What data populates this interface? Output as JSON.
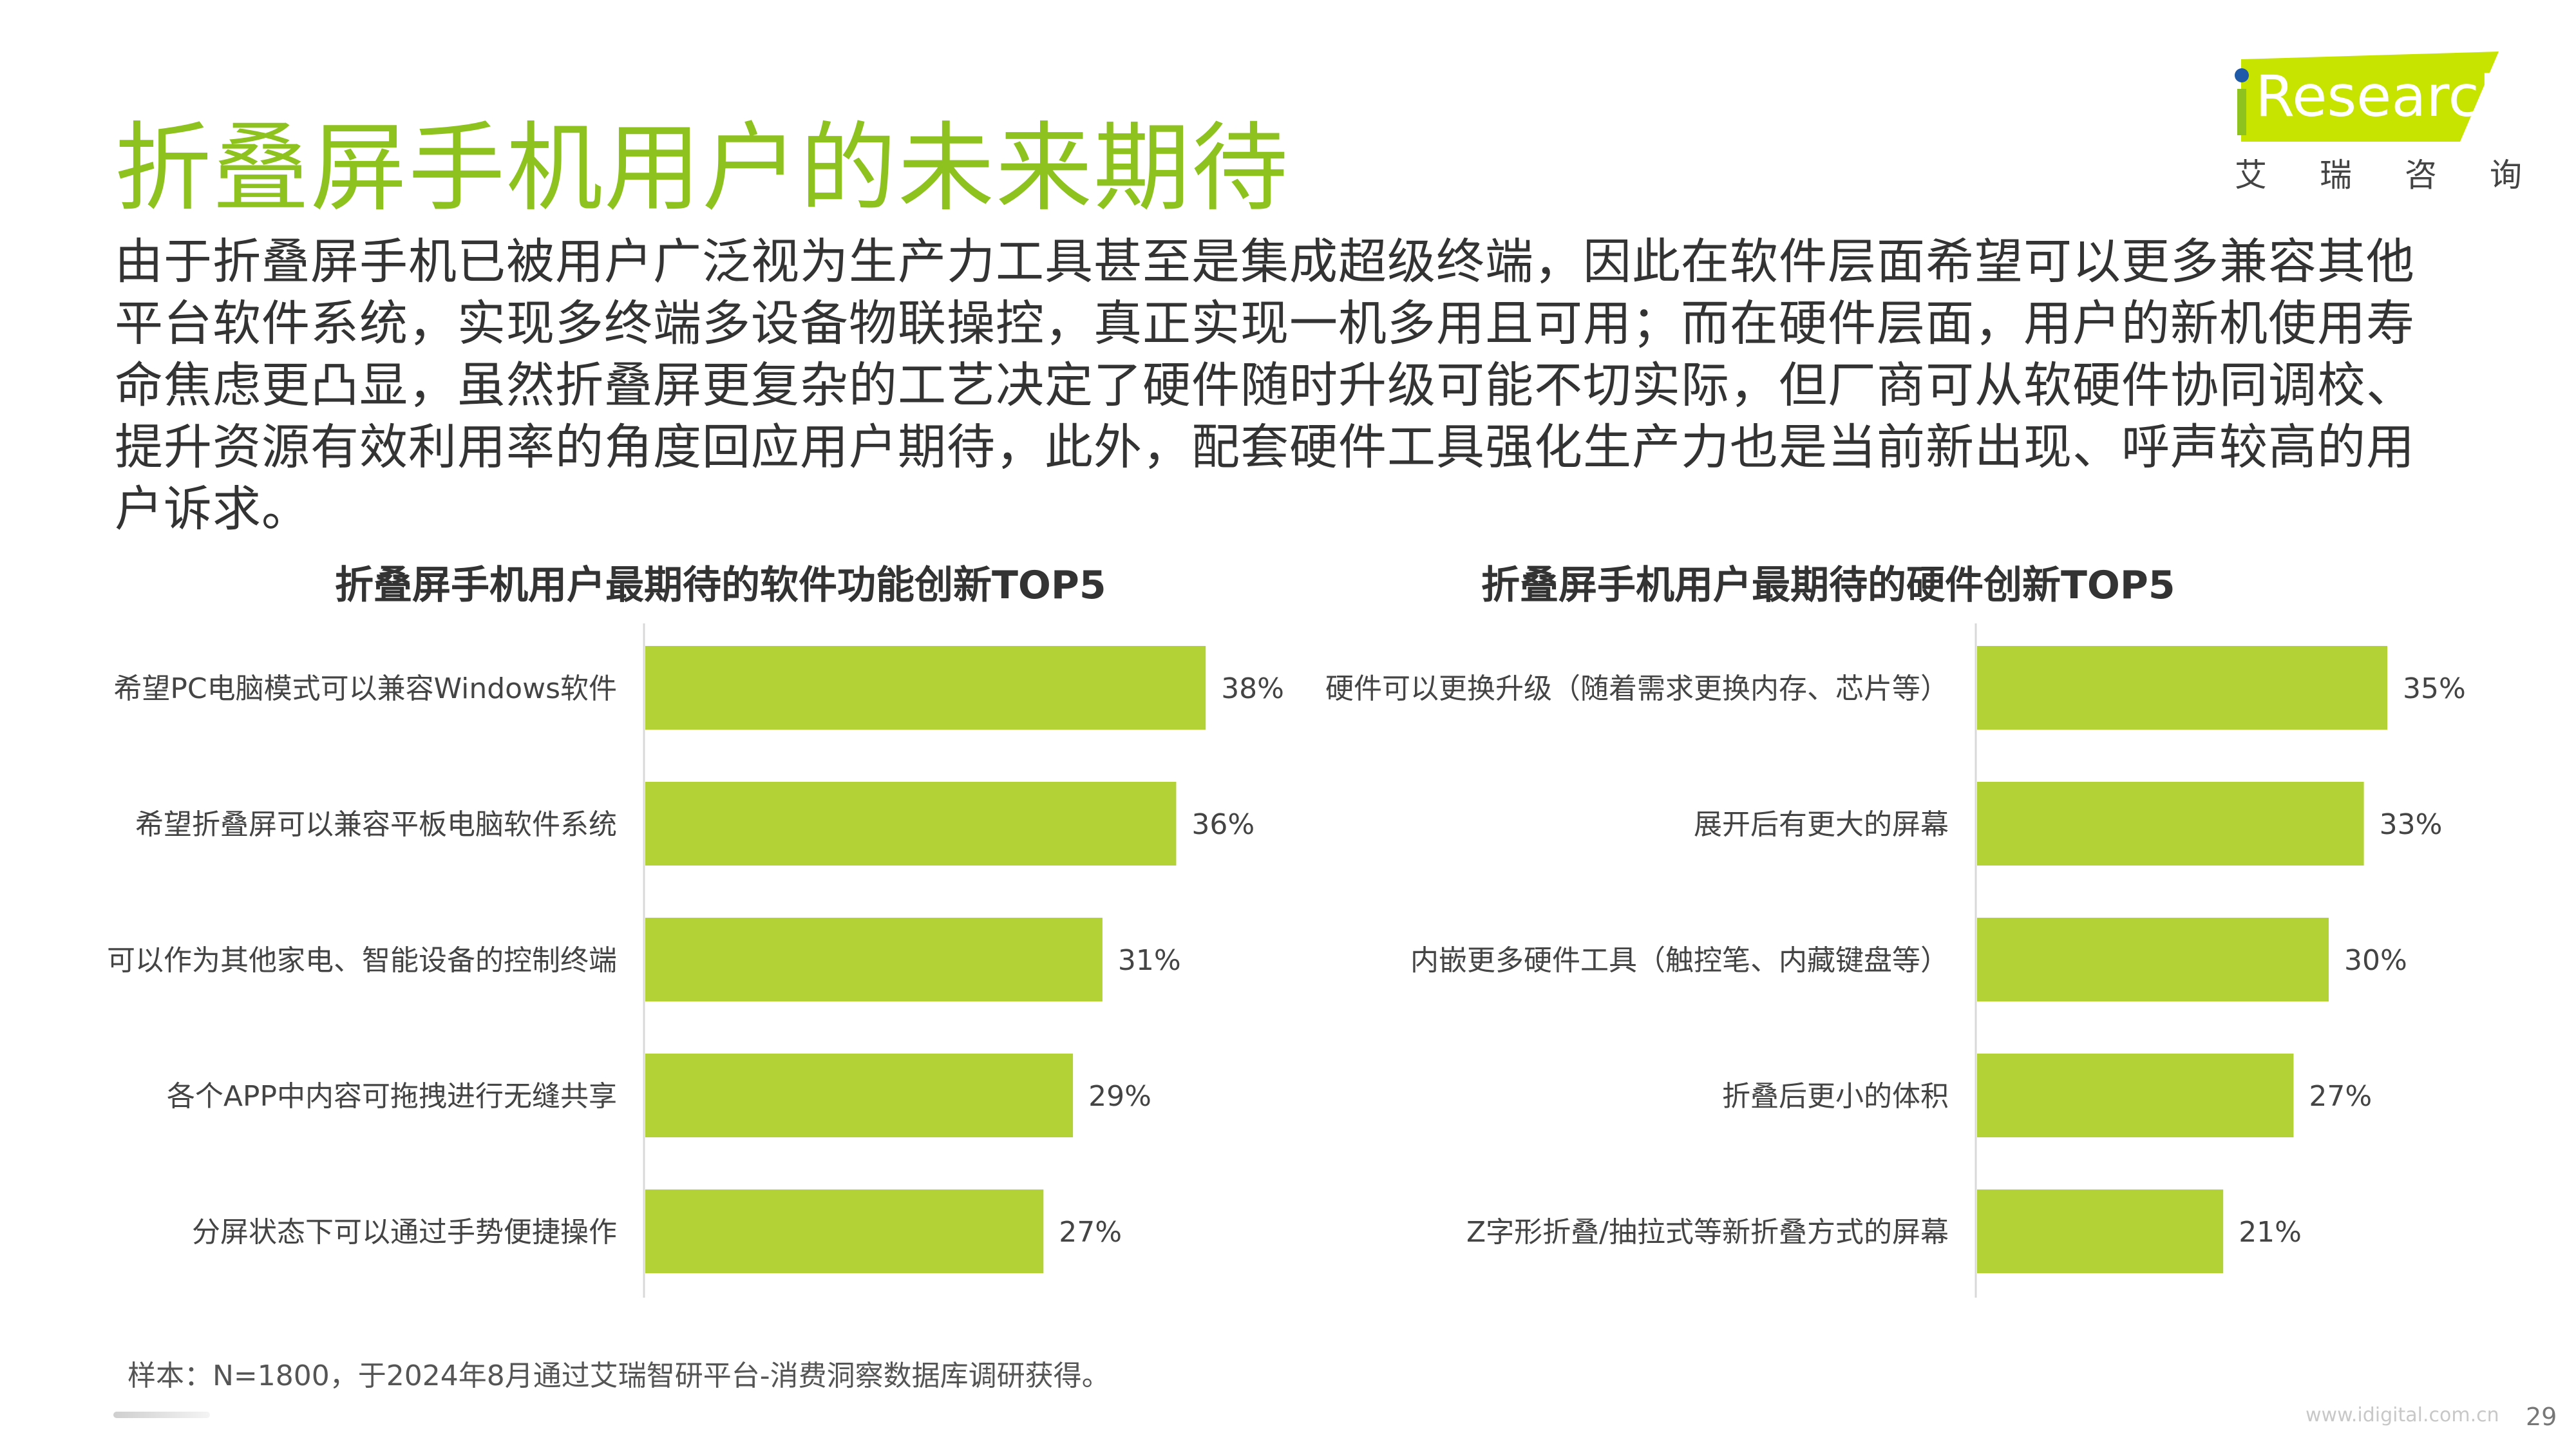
{
  "page": {
    "title": "折叠屏手机用户的未来期待",
    "description": "由于折叠屏手机已被用户广泛视为生产力工具甚至是集成超级终端，因此在软件层面希望可以更多兼容其他平台软件系统，实现多终端多设备物联操控，真正实现一机多用且可用；而在硬件层面，用户的新机使用寿命焦虑更凸显，虽然折叠屏更复杂的工艺决定了硬件随时升级可能不切实际，但厂商可从软硬件协同调校、提升资源有效利用率的角度回应用户期待，此外，配套硬件工具强化生产力也是当前新出现、呼声较高的用户诉求。",
    "note": "样本：N=1800，于2024年8月通过艾瑞智研平台-消费洞察数据库调研获得。",
    "watermark": "www.idigital.com.cn",
    "page_number": "29"
  },
  "logo": {
    "text": "Research",
    "cn": "艾瑞咨询"
  },
  "colors": {
    "accent": "#8dc21f",
    "bar": "#b2d235",
    "logo_bg": "#c7e300",
    "logo_dot": "#1e5aa8"
  },
  "chart_data": [
    {
      "type": "bar",
      "orientation": "horizontal",
      "title": "折叠屏手机用户最期待的软件功能创新TOP5",
      "categories": [
        "希望PC电脑模式可以兼容Windows软件",
        "希望折叠屏可以兼容平板电脑软件系统",
        "可以作为其他家电、智能设备的控制终端",
        "各个APP中内容可拖拽进行无缝共享",
        "分屏状态下可以通过手势便捷操作"
      ],
      "values": [
        38,
        36,
        31,
        29,
        27
      ],
      "labels": [
        "38%",
        "36%",
        "31%",
        "29%",
        "27%"
      ],
      "unit": "%"
    },
    {
      "type": "bar",
      "orientation": "horizontal",
      "title": "折叠屏手机用户最期待的硬件创新TOP5",
      "categories": [
        "硬件可以更换升级（随着需求更换内存、芯片等）",
        "展开后有更大的屏幕",
        "内嵌更多硬件工具（触控笔、内藏键盘等）",
        "折叠后更小的体积",
        "Z字形折叠/抽拉式等新折叠方式的屏幕"
      ],
      "values": [
        35,
        33,
        30,
        27,
        21
      ],
      "labels": [
        "35%",
        "33%",
        "30%",
        "27%",
        "21%"
      ],
      "unit": "%"
    }
  ]
}
